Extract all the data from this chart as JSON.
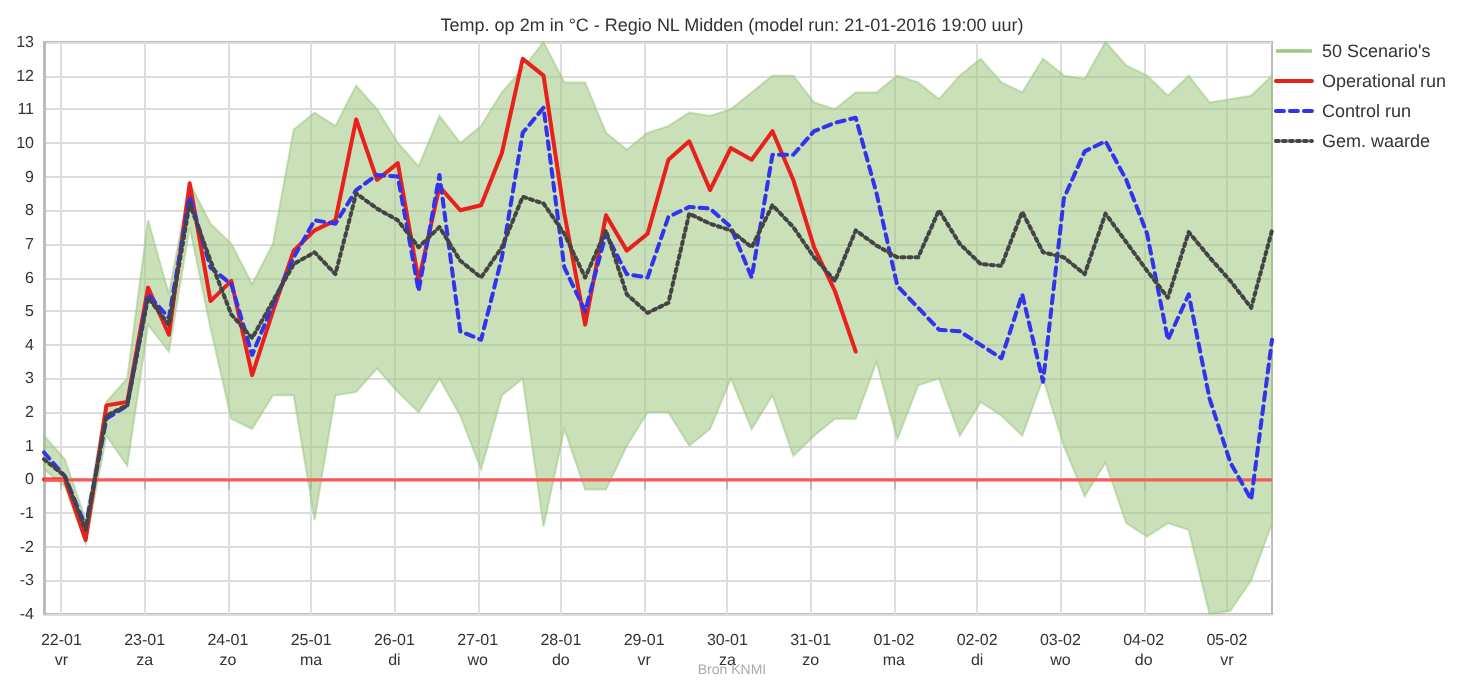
{
  "chart_data": {
    "type": "line",
    "title": "Temp. op 2m in °C - Regio NL Midden (model run: 21-01-2016 19:00 uur)",
    "annotations": [
      "Bron KNMI"
    ],
    "x": [
      "2016-01-21T19:00",
      "2016-01-22T01:00",
      "2016-01-22T07:00",
      "2016-01-22T13:00",
      "2016-01-22T19:00",
      "2016-01-23T01:00",
      "2016-01-23T07:00",
      "2016-01-23T13:00",
      "2016-01-23T19:00",
      "2016-01-24T01:00",
      "2016-01-24T07:00",
      "2016-01-24T13:00",
      "2016-01-24T19:00",
      "2016-01-25T01:00",
      "2016-01-25T07:00",
      "2016-01-25T13:00",
      "2016-01-25T19:00",
      "2016-01-26T01:00",
      "2016-01-26T07:00",
      "2016-01-26T13:00",
      "2016-01-26T19:00",
      "2016-01-27T01:00",
      "2016-01-27T07:00",
      "2016-01-27T13:00",
      "2016-01-27T19:00",
      "2016-01-28T01:00",
      "2016-01-28T07:00",
      "2016-01-28T13:00",
      "2016-01-28T19:00",
      "2016-01-29T01:00",
      "2016-01-29T07:00",
      "2016-01-29T13:00",
      "2016-01-29T19:00",
      "2016-01-30T01:00",
      "2016-01-30T07:00",
      "2016-01-30T13:00",
      "2016-01-30T19:00",
      "2016-01-31T01:00",
      "2016-01-31T07:00",
      "2016-01-31T13:00",
      "2016-01-31T19:00",
      "2016-02-01T01:00",
      "2016-02-01T07:00",
      "2016-02-01T13:00",
      "2016-02-01T19:00",
      "2016-02-02T01:00",
      "2016-02-02T07:00",
      "2016-02-02T13:00",
      "2016-02-02T19:00",
      "2016-02-03T01:00",
      "2016-02-03T07:00",
      "2016-02-03T13:00",
      "2016-02-03T19:00",
      "2016-02-04T01:00",
      "2016-02-04T07:00",
      "2016-02-04T13:00",
      "2016-02-04T19:00",
      "2016-02-05T01:00",
      "2016-02-05T07:00",
      "2016-02-05T13:00"
    ],
    "series": [
      {
        "name": "50 Scenario's",
        "color": "#9dc77f",
        "values": [
          null,
          null,
          null,
          null,
          null,
          null,
          null,
          null,
          null,
          null,
          null,
          null,
          null,
          null,
          null,
          null,
          null,
          null,
          null,
          null,
          null,
          null,
          null,
          null,
          null,
          null,
          null,
          null,
          null,
          null,
          null,
          null,
          null,
          null,
          null,
          null,
          null,
          null,
          null,
          null,
          null,
          null,
          null,
          null,
          null,
          null,
          null,
          null,
          null,
          null,
          null,
          null,
          null,
          null,
          null,
          null,
          null,
          null,
          null,
          null
        ],
        "lower": [
          0.3,
          -0.2,
          -1.9,
          1.3,
          0.4,
          4.6,
          3.8,
          7.5,
          4.5,
          1.8,
          1.5,
          2.5,
          2.5,
          -1.2,
          2.5,
          2.6,
          3.3,
          2.6,
          2.0,
          3.0,
          1.9,
          0.3,
          2.5,
          3.0,
          -1.4,
          1.5,
          -0.3,
          -0.3,
          1.0,
          2.0,
          2.0,
          1.0,
          1.5,
          3.0,
          1.5,
          2.5,
          0.7,
          1.3,
          1.8,
          1.8,
          3.5,
          1.2,
          2.8,
          3.0,
          1.3,
          2.3,
          1.9,
          1.3,
          3.0,
          1.0,
          -0.5,
          0.5,
          -1.3,
          -1.7,
          -1.3,
          -1.5,
          -4.0,
          -3.9,
          -3.0,
          -1.3
        ],
        "upper": [
          1.3,
          0.6,
          -1.2,
          2.3,
          3.0,
          7.7,
          5.5,
          8.8,
          7.6,
          7.0,
          5.8,
          7.0,
          10.4,
          10.9,
          10.5,
          11.7,
          11.0,
          10.0,
          9.3,
          10.8,
          10.0,
          10.5,
          11.5,
          12.2,
          13.0,
          11.8,
          11.8,
          10.3,
          9.8,
          10.3,
          10.5,
          10.9,
          10.8,
          11.0,
          11.5,
          12.0,
          12.0,
          11.2,
          11.0,
          11.5,
          11.5,
          12.0,
          11.8,
          11.3,
          12.0,
          12.5,
          11.8,
          11.5,
          12.5,
          12.0,
          11.9,
          13.0,
          12.3,
          12.0,
          11.4,
          12.0,
          11.2,
          11.3,
          11.4,
          12.0
        ]
      },
      {
        "name": "Operational run",
        "color": "#e8211c",
        "line_style": "solid",
        "values": [
          0.0,
          0.0,
          -1.8,
          2.2,
          2.3,
          5.7,
          4.3,
          8.8,
          5.3,
          5.9,
          3.1,
          5.0,
          6.8,
          7.4,
          7.7,
          10.7,
          8.9,
          9.4,
          5.9,
          8.7,
          8.0,
          8.15,
          9.7,
          12.5,
          12.0,
          7.9,
          4.6,
          7.85,
          6.8,
          7.3,
          9.5,
          10.05,
          8.6,
          9.85,
          9.5,
          10.35,
          8.9,
          6.9,
          5.6,
          3.8,
          null,
          null,
          null,
          null,
          null,
          null,
          null,
          null,
          null,
          null,
          null,
          null,
          null,
          null,
          null,
          null,
          null,
          null,
          null,
          null
        ]
      },
      {
        "name": "Control run",
        "color": "#3333ee",
        "line_style": "dashed",
        "values": [
          0.8,
          0.1,
          -1.4,
          1.8,
          2.2,
          5.5,
          4.8,
          8.4,
          6.3,
          5.8,
          3.7,
          5.2,
          6.6,
          7.7,
          7.6,
          8.6,
          9.05,
          9.0,
          5.6,
          9.05,
          4.4,
          4.15,
          6.6,
          10.3,
          11.05,
          6.3,
          5.0,
          7.3,
          6.1,
          6.0,
          7.8,
          8.1,
          8.05,
          7.5,
          6.0,
          9.65,
          9.65,
          10.35,
          10.6,
          10.75,
          8.5,
          5.75,
          5.1,
          4.45,
          4.4,
          4.0,
          3.6,
          5.5,
          2.9,
          8.35,
          9.75,
          10.05,
          8.9,
          7.3,
          4.15,
          5.5,
          2.4,
          0.5,
          -0.6,
          4.15
        ]
      },
      {
        "name": "Gem. waarde",
        "color": "#444444",
        "line_style": "dotted",
        "values": [
          0.6,
          0.1,
          -1.5,
          1.9,
          2.2,
          5.4,
          4.6,
          8.2,
          6.5,
          4.9,
          4.2,
          5.3,
          6.4,
          6.75,
          6.1,
          8.5,
          8.05,
          7.7,
          6.9,
          7.5,
          6.5,
          6.0,
          6.9,
          8.4,
          8.2,
          7.3,
          6.0,
          7.4,
          5.5,
          4.95,
          5.25,
          7.9,
          7.6,
          7.4,
          6.9,
          8.15,
          7.5,
          6.6,
          5.9,
          7.4,
          6.95,
          6.6,
          6.6,
          8.0,
          7.0,
          6.4,
          6.35,
          7.95,
          6.75,
          6.6,
          6.1,
          7.9,
          7.05,
          6.2,
          5.4,
          7.35,
          6.6,
          5.9,
          5.1,
          7.4
        ]
      }
    ],
    "xlim": [
      "2016-01-21T19:00",
      "2016-02-05T13:00"
    ],
    "xticks": [
      {
        "value": "2016-01-22",
        "label": "22-01\nvr"
      },
      {
        "value": "2016-01-23",
        "label": "23-01\nza"
      },
      {
        "value": "2016-01-24",
        "label": "24-01\nzo"
      },
      {
        "value": "2016-01-25",
        "label": "25-01\nma"
      },
      {
        "value": "2016-01-26",
        "label": "26-01\ndi"
      },
      {
        "value": "2016-01-27",
        "label": "27-01\nwo"
      },
      {
        "value": "2016-01-28",
        "label": "28-01\ndo"
      },
      {
        "value": "2016-01-29",
        "label": "29-01\nvr"
      },
      {
        "value": "2016-01-30",
        "label": "30-01\nza"
      },
      {
        "value": "2016-01-31",
        "label": "31-01\nzo"
      },
      {
        "value": "2016-02-01",
        "label": "01-02\nma"
      },
      {
        "value": "2016-02-02",
        "label": "02-02\ndi"
      },
      {
        "value": "2016-02-03",
        "label": "03-02\nwo"
      },
      {
        "value": "2016-02-04",
        "label": "04-02\ndo"
      },
      {
        "value": "2016-02-05",
        "label": "05-02\nvr"
      }
    ],
    "ylim": [
      -4,
      13
    ],
    "yticks": [
      -4,
      -3,
      -2,
      -1,
      0,
      1,
      2,
      3,
      4,
      5,
      6,
      7,
      8,
      9,
      10,
      11,
      12,
      13
    ],
    "ref_lines": [
      {
        "axis": "y",
        "value": 0,
        "color": "#ff5555"
      }
    ],
    "grid": true,
    "legend": "top right",
    "marker": "none"
  }
}
